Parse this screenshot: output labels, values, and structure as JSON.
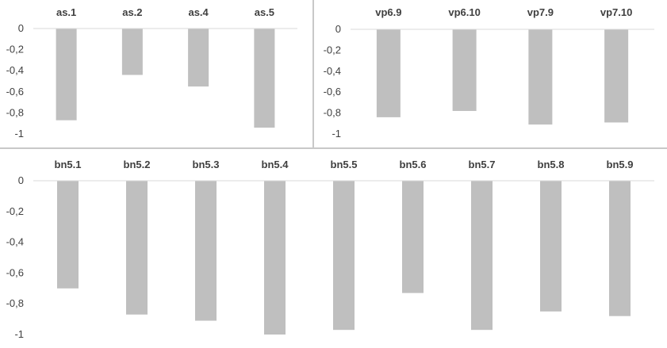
{
  "colors": {
    "bar": "#bfbfbf",
    "axis": "#d9d9d9",
    "divider": "#c8c8c8",
    "text": "#404040"
  },
  "chart_data": [
    {
      "type": "bar",
      "categories": [
        "as.1",
        "as.2",
        "as.4",
        "as.5"
      ],
      "values": [
        -0.87,
        -0.44,
        -0.55,
        -0.94
      ],
      "yticks": [
        "0",
        "-0,2",
        "-0,4",
        "-0,6",
        "-0,8",
        "-1"
      ],
      "ylim": [
        -1,
        0
      ],
      "category_axis_position": "top",
      "grid": false
    },
    {
      "type": "bar",
      "categories": [
        "vp6.9",
        "vp6.10",
        "vp7.9",
        "vp7.10"
      ],
      "values": [
        -0.84,
        -0.78,
        -0.91,
        -0.89
      ],
      "yticks": [
        "0",
        "-0,2",
        "-0,4",
        "-0,6",
        "-0,8",
        "-1"
      ],
      "ylim": [
        -1,
        0
      ],
      "category_axis_position": "top",
      "grid": false
    },
    {
      "type": "bar",
      "categories": [
        "bn5.1",
        "bn5.2",
        "bn5.3",
        "bn5.4",
        "bn5.5",
        "bn5.6",
        "bn5.7",
        "bn5.8",
        "bn5.9"
      ],
      "values": [
        -0.7,
        -0.87,
        -0.91,
        -1.0,
        -0.97,
        -0.73,
        -0.97,
        -0.85,
        -0.88
      ],
      "yticks": [
        "0",
        "-0,2",
        "-0,4",
        "-0,6",
        "-0,8",
        "-1"
      ],
      "ylim": [
        -1,
        0
      ],
      "category_axis_position": "top",
      "grid": false
    }
  ]
}
